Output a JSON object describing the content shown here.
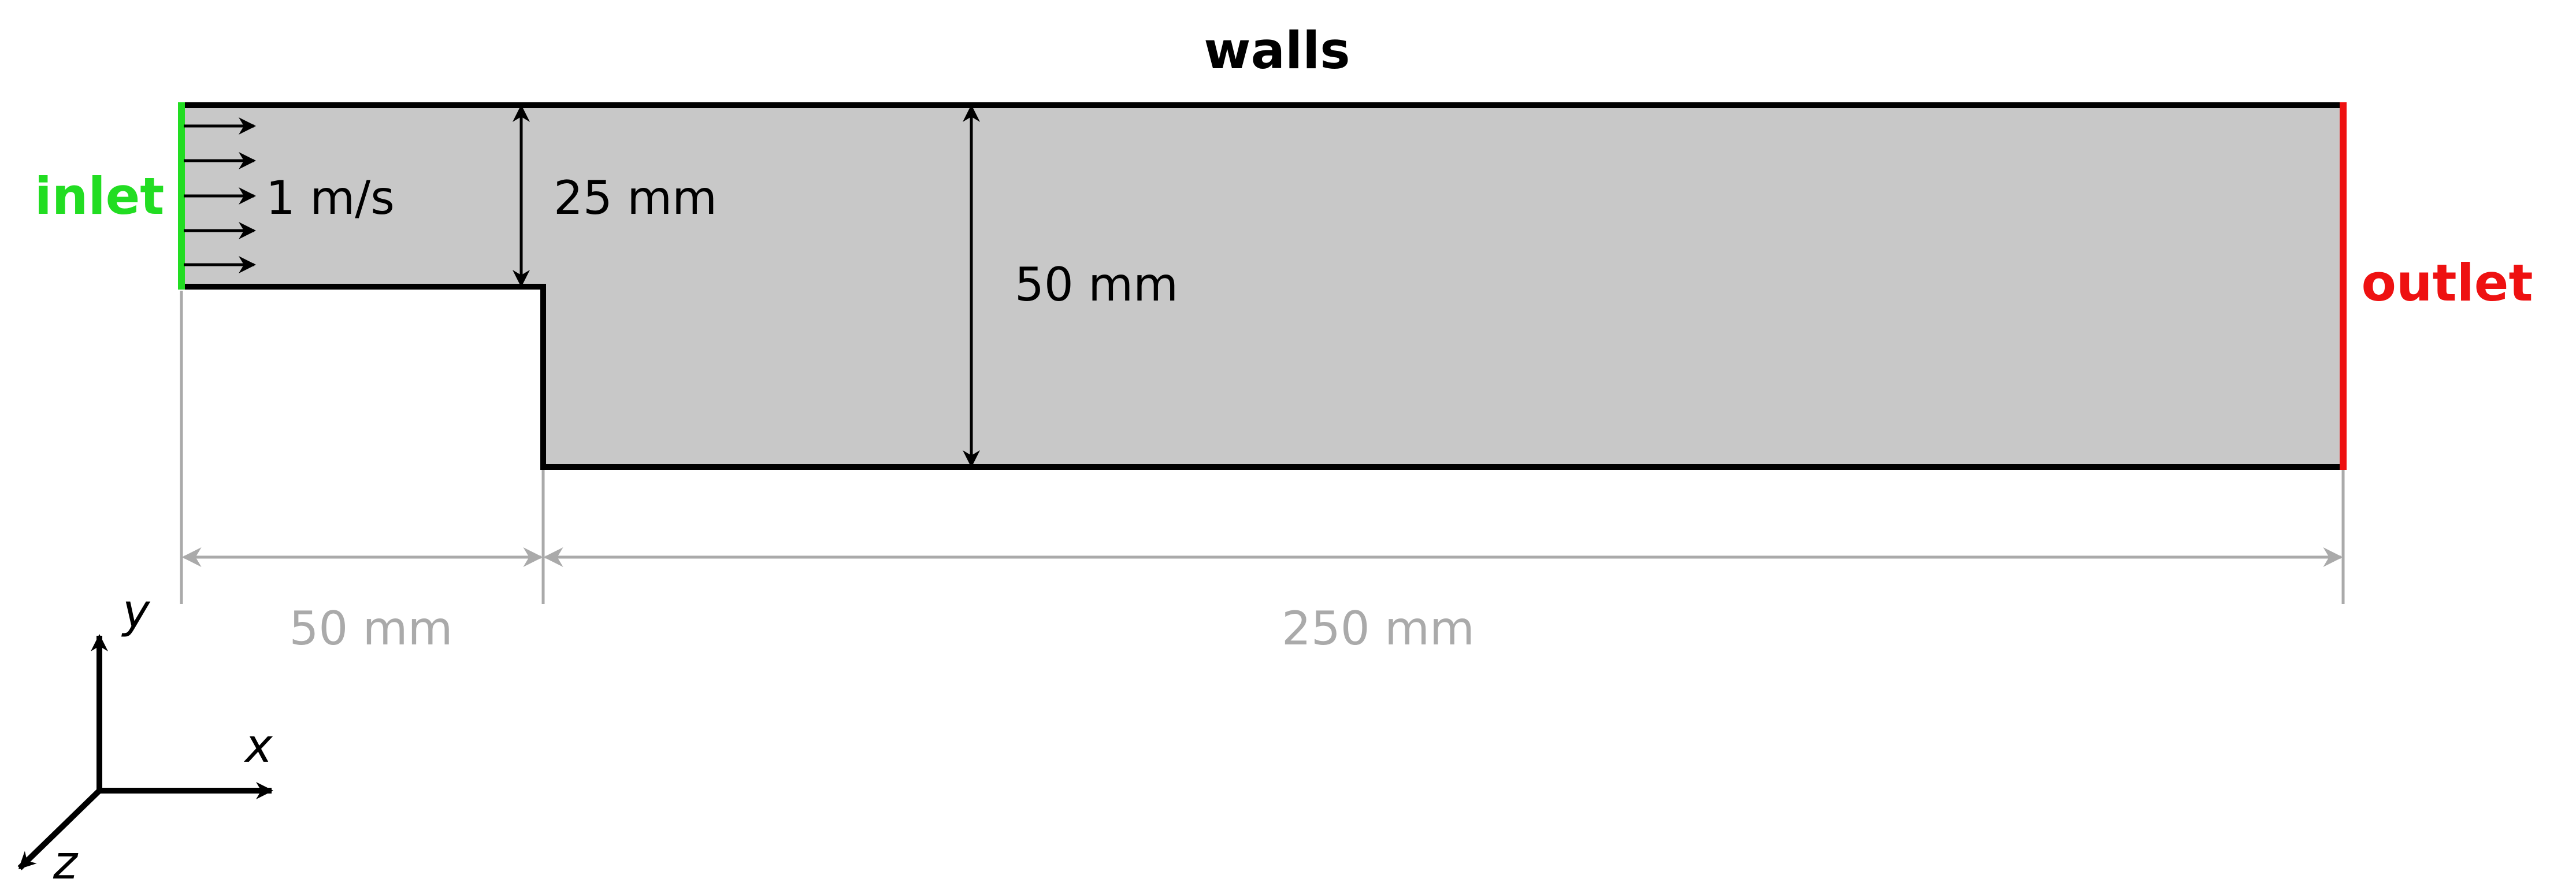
{
  "labels": {
    "walls": "walls",
    "inlet": "inlet",
    "outlet": "outlet",
    "velocity": "1 m/s",
    "inlet_height": "25 mm",
    "channel_height": "50 mm",
    "step_length": "50 mm",
    "downstream_length": "250 mm"
  },
  "axes": {
    "x": "x",
    "y": "y",
    "z": "z"
  },
  "colors": {
    "domain_fill": "#c8c8c8",
    "wall": "#000000",
    "inlet": "#22dd22",
    "outlet": "#ee1111",
    "dimension_gray": "#aaaaaa"
  }
}
